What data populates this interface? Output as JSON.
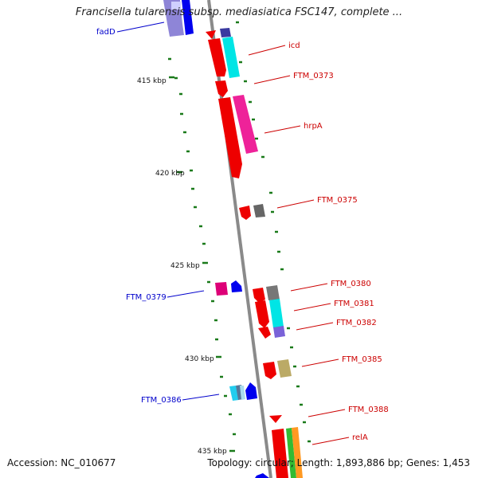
{
  "header": {
    "title": "Francisella tularensis subsp. mediasiatica FSC147, complete ..."
  },
  "footer": {
    "accession": "Accession: NC_010677",
    "summary": "Topology: circular; Length: 1,893,886 bp; Genes: 1,453"
  },
  "ruler": {
    "ticks": [
      {
        "label": "415 kbp"
      },
      {
        "label": "420 kbp"
      },
      {
        "label": "425 kbp"
      },
      {
        "label": "430 kbp"
      },
      {
        "label": "435 kbp"
      }
    ]
  },
  "gene_labels": [
    {
      "name": "fadD",
      "strand": "reverse",
      "color": "#0000cc"
    },
    {
      "name": "icd",
      "strand": "forward",
      "color": "#cc0000"
    },
    {
      "name": "FTM_0373",
      "strand": "forward",
      "color": "#cc0000"
    },
    {
      "name": "hrpA",
      "strand": "forward",
      "color": "#cc0000"
    },
    {
      "name": "FTM_0375",
      "strand": "forward",
      "color": "#cc0000"
    },
    {
      "name": "FTM_0379",
      "strand": "reverse",
      "color": "#0000cc"
    },
    {
      "name": "FTM_0380",
      "strand": "forward",
      "color": "#cc0000"
    },
    {
      "name": "FTM_0381",
      "strand": "forward",
      "color": "#cc0000"
    },
    {
      "name": "FTM_0382",
      "strand": "forward",
      "color": "#cc0000"
    },
    {
      "name": "FTM_0385",
      "strand": "forward",
      "color": "#cc0000"
    },
    {
      "name": "FTM_0386",
      "strand": "reverse",
      "color": "#0000cc"
    },
    {
      "name": "FTM_0388",
      "strand": "forward",
      "color": "#cc0000"
    },
    {
      "name": "relA",
      "strand": "forward",
      "color": "#cc0000"
    }
  ]
}
